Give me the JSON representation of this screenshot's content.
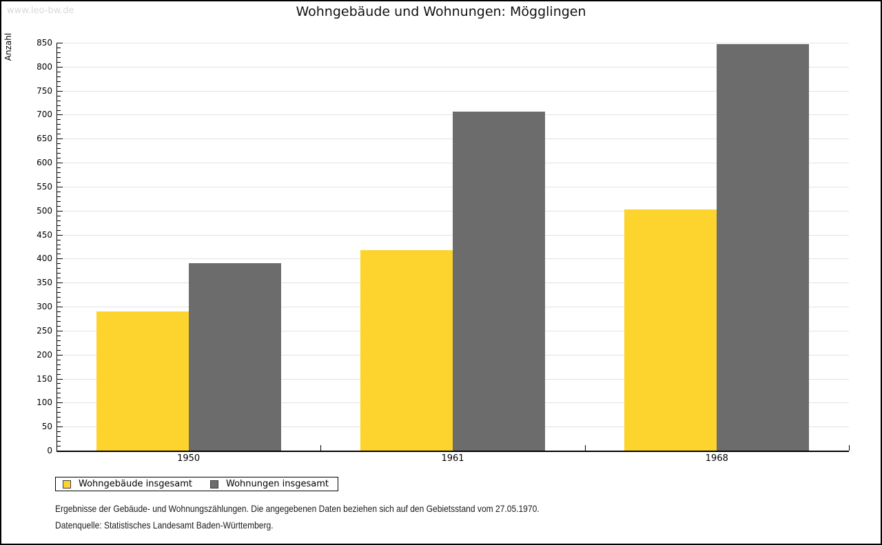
{
  "watermark": "www.leo-bw.de",
  "chart_data": {
    "type": "bar",
    "title": "Wohngebäude und Wohnungen: Mögglingen",
    "xlabel": "",
    "ylabel": "Anzahl",
    "ylim": [
      0,
      850
    ],
    "ytick_major_step": 50,
    "ytick_minor_step": 10,
    "grid": true,
    "legend_position": "bottom-left",
    "categories": [
      "1950",
      "1961",
      "1968"
    ],
    "series": [
      {
        "name": "Wohngebäude insgesamt",
        "color": "#fcd42d",
        "values": [
          290,
          418,
          503
        ]
      },
      {
        "name": "Wohnungen insgesamt",
        "color": "#6c6c6c",
        "values": [
          390,
          707,
          847
        ]
      }
    ]
  },
  "footer": {
    "line1": "Ergebnisse der Gebäude- und Wohnungszählungen. Die angegebenen Daten beziehen sich auf den Gebietsstand vom 27.05.1970.",
    "line2": "Datenquelle: Statistisches Landesamt Baden-Württemberg."
  }
}
